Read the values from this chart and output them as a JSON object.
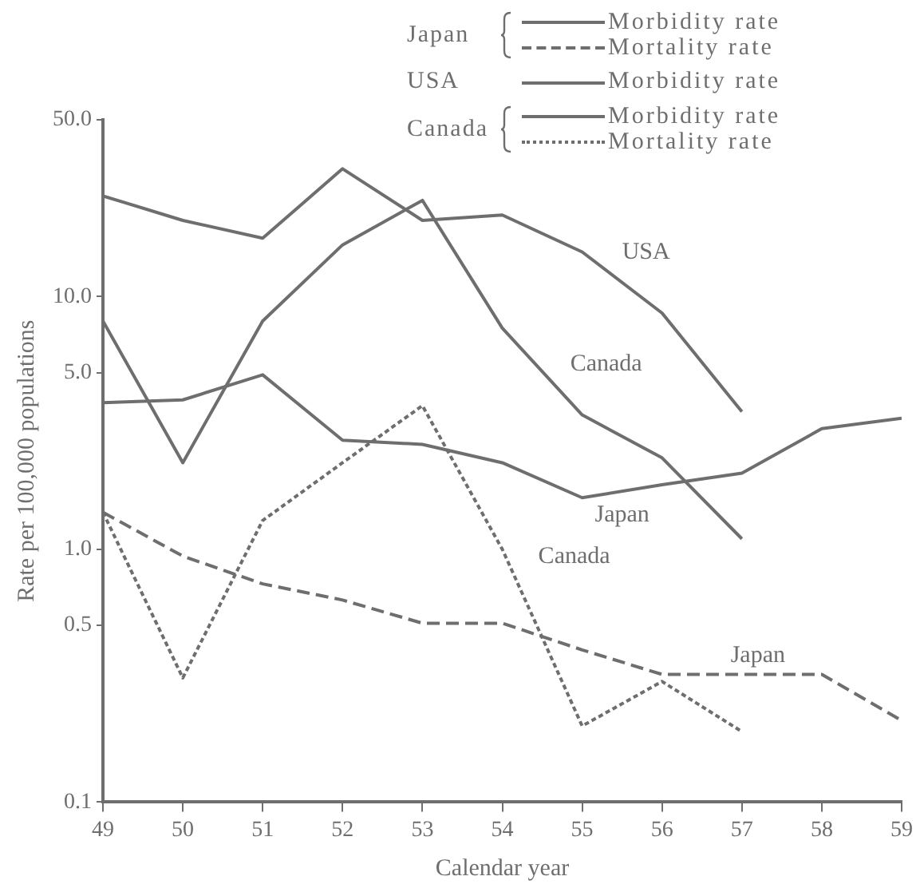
{
  "chart_data": {
    "type": "line",
    "xlabel": "Calendar year",
    "ylabel": "Rate per 100,000 populations",
    "x": [
      49,
      50,
      51,
      52,
      53,
      54,
      55,
      56,
      57,
      58,
      59
    ],
    "xlim": [
      49,
      59
    ],
    "xticks": [
      49,
      50,
      51,
      52,
      53,
      54,
      55,
      56,
      57,
      58,
      59
    ],
    "ylim": [
      0.1,
      50
    ],
    "log": true,
    "grid": false,
    "legend": "top right",
    "marker": "none",
    "yticks": [
      {
        "value": 0.1,
        "label": "0.1"
      },
      {
        "value": 0.5,
        "label": "0.5"
      },
      {
        "value": 1,
        "label": "1.0"
      },
      {
        "value": 5,
        "label": "5.0"
      },
      {
        "value": 10,
        "label": "10.0"
      },
      {
        "value": 50,
        "label": "50.0"
      }
    ],
    "series": [
      {
        "name": "Morbidity rate",
        "color": "#6e6e6e",
        "line_style": "solid",
        "values": [
          3.8,
          3.9,
          4.9,
          2.7,
          2.6,
          2.2,
          1.6,
          1.8,
          2.0,
          3.0,
          3.3
        ]
      },
      {
        "name": "Mortality rate",
        "color": "#6e6e6e",
        "line_style": "dashed",
        "values": [
          1.4,
          0.94,
          0.73,
          0.63,
          0.51,
          0.51,
          0.4,
          0.32,
          0.32,
          0.32,
          0.21
        ]
      },
      {
        "name": "Morbidity rate",
        "color": "#6e6e6e",
        "line_style": "solid",
        "values": [
          25,
          20,
          17,
          32,
          20,
          21,
          15,
          8.6,
          3.5,
          null,
          null
        ]
      },
      {
        "name": "Morbidity rate",
        "color": "#6e6e6e",
        "line_style": "solid",
        "values": [
          8.0,
          2.2,
          8.0,
          16,
          24,
          7.5,
          3.4,
          2.3,
          1.1,
          null,
          null
        ]
      },
      {
        "name": "Mortality rate",
        "color": "#6e6e6e",
        "line_style": "dotted",
        "values": [
          1.4,
          0.31,
          1.3,
          2.2,
          3.7,
          1.0,
          0.2,
          0.3,
          0.19,
          null,
          null
        ]
      }
    ],
    "annotations": [
      "Japan",
      "USA",
      "Canada",
      "USA",
      "Canada",
      "Japan",
      "Canada",
      "Japan"
    ]
  }
}
